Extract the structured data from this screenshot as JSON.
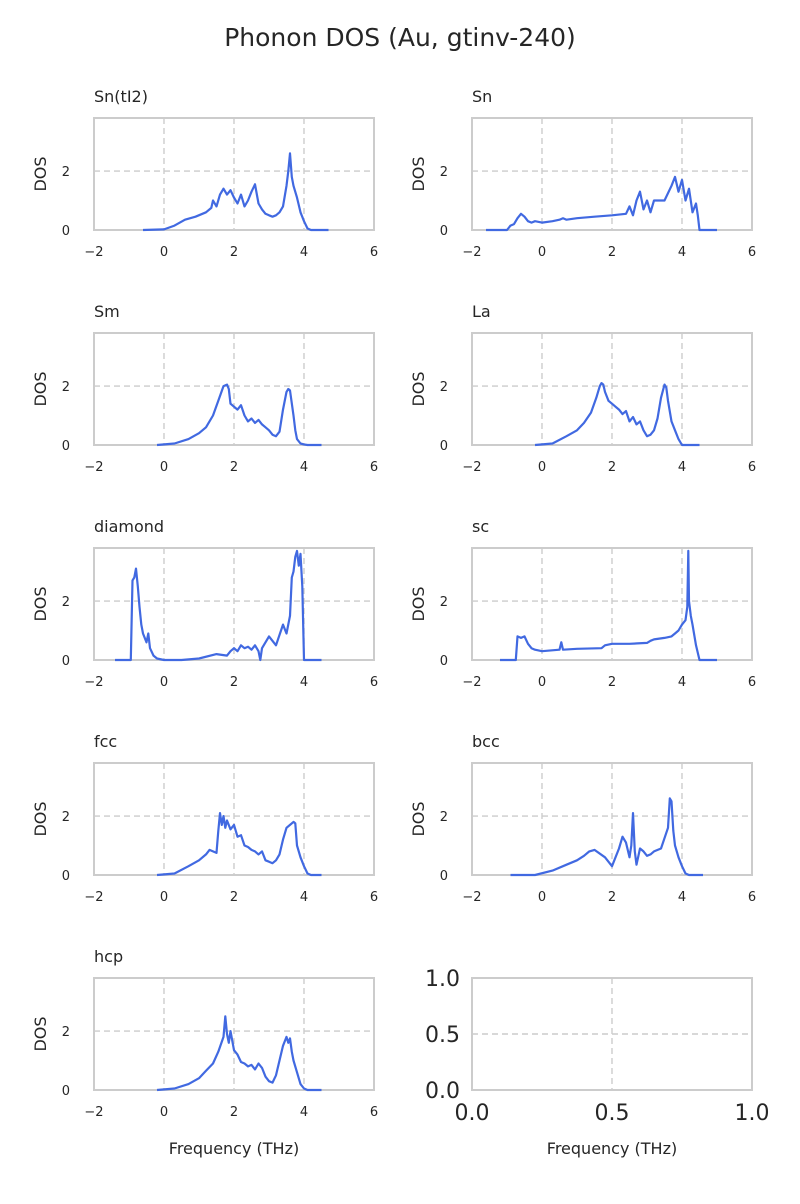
{
  "figure_title": "Phonon DOS (Au, gtinv-240)",
  "xlabel": "Frequency (THz)",
  "ylabel": "DOS",
  "chart_data": [
    {
      "type": "line",
      "title": "Sn(tI2)",
      "xlim": [
        -2,
        6
      ],
      "ylim": [
        0,
        3.8
      ],
      "xticks": [
        -2,
        0,
        2,
        4,
        6
      ],
      "yticks": [
        0,
        2
      ],
      "x": [
        -0.6,
        0,
        0.3,
        0.6,
        0.9,
        1.2,
        1.35,
        1.4,
        1.5,
        1.6,
        1.7,
        1.8,
        1.9,
        2.0,
        2.1,
        2.2,
        2.3,
        2.4,
        2.5,
        2.6,
        2.7,
        2.8,
        2.9,
        3.0,
        3.1,
        3.2,
        3.3,
        3.4,
        3.5,
        3.55,
        3.6,
        3.65,
        3.7,
        3.8,
        3.9,
        4.0,
        4.1,
        4.2,
        4.7
      ],
      "y": [
        0,
        0.02,
        0.15,
        0.35,
        0.45,
        0.6,
        0.75,
        1.0,
        0.8,
        1.2,
        1.4,
        1.2,
        1.35,
        1.1,
        0.9,
        1.2,
        0.8,
        1.0,
        1.3,
        1.55,
        0.9,
        0.7,
        0.55,
        0.5,
        0.45,
        0.5,
        0.6,
        0.8,
        1.5,
        2.0,
        2.6,
        1.8,
        1.5,
        1.1,
        0.6,
        0.3,
        0.05,
        0,
        0
      ]
    },
    {
      "type": "line",
      "title": "Sn",
      "xlim": [
        -2,
        6
      ],
      "ylim": [
        0,
        3.8
      ],
      "xticks": [
        -2,
        0,
        2,
        4,
        6
      ],
      "yticks": [
        0,
        2
      ],
      "x": [
        -1.6,
        -1.0,
        -0.9,
        -0.8,
        -0.7,
        -0.6,
        -0.5,
        -0.4,
        -0.3,
        -0.2,
        0,
        0.3,
        0.5,
        0.6,
        0.7,
        1.0,
        1.5,
        2.0,
        2.4,
        2.5,
        2.6,
        2.7,
        2.8,
        2.9,
        3.0,
        3.1,
        3.2,
        3.3,
        3.5,
        3.7,
        3.8,
        3.9,
        4.0,
        4.1,
        4.2,
        4.3,
        4.4,
        4.45,
        4.5,
        5.0
      ],
      "y": [
        0,
        0,
        0.15,
        0.2,
        0.4,
        0.55,
        0.45,
        0.3,
        0.25,
        0.3,
        0.25,
        0.3,
        0.35,
        0.4,
        0.35,
        0.4,
        0.45,
        0.5,
        0.55,
        0.8,
        0.5,
        1.0,
        1.3,
        0.7,
        1.0,
        0.6,
        1.0,
        1.0,
        1.0,
        1.5,
        1.8,
        1.3,
        1.7,
        1.0,
        1.4,
        0.6,
        0.9,
        0.5,
        0,
        0
      ]
    },
    {
      "type": "line",
      "title": "Sm",
      "xlim": [
        -2,
        6
      ],
      "ylim": [
        0,
        3.8
      ],
      "xticks": [
        -2,
        0,
        2,
        4,
        6
      ],
      "yticks": [
        0,
        2
      ],
      "x": [
        -0.2,
        0.3,
        0.7,
        1.0,
        1.2,
        1.4,
        1.55,
        1.7,
        1.8,
        1.85,
        1.9,
        2.0,
        2.1,
        2.2,
        2.3,
        2.4,
        2.5,
        2.6,
        2.7,
        2.8,
        2.9,
        3.0,
        3.1,
        3.2,
        3.3,
        3.4,
        3.5,
        3.55,
        3.6,
        3.7,
        3.75,
        3.8,
        3.9,
        4.0,
        4.1,
        4.5
      ],
      "y": [
        0,
        0.05,
        0.2,
        0.4,
        0.6,
        1.0,
        1.5,
        2.0,
        2.05,
        1.9,
        1.4,
        1.3,
        1.2,
        1.35,
        1.0,
        0.8,
        0.9,
        0.75,
        0.85,
        0.7,
        0.6,
        0.5,
        0.35,
        0.3,
        0.45,
        1.2,
        1.8,
        1.9,
        1.85,
        1.0,
        0.5,
        0.2,
        0.05,
        0.02,
        0,
        0
      ]
    },
    {
      "type": "line",
      "title": "La",
      "xlim": [
        -2,
        6
      ],
      "ylim": [
        0,
        3.8
      ],
      "xticks": [
        -2,
        0,
        2,
        4,
        6
      ],
      "yticks": [
        0,
        2
      ],
      "x": [
        -0.2,
        0.3,
        0.7,
        1.0,
        1.2,
        1.4,
        1.55,
        1.65,
        1.7,
        1.75,
        1.8,
        1.9,
        2.0,
        2.1,
        2.2,
        2.3,
        2.4,
        2.5,
        2.6,
        2.7,
        2.8,
        2.9,
        3.0,
        3.1,
        3.2,
        3.3,
        3.4,
        3.5,
        3.55,
        3.6,
        3.7,
        3.8,
        3.9,
        4.0,
        4.1,
        4.5
      ],
      "y": [
        0,
        0.05,
        0.3,
        0.5,
        0.75,
        1.1,
        1.6,
        2.0,
        2.1,
        2.05,
        1.8,
        1.5,
        1.4,
        1.3,
        1.2,
        1.05,
        1.15,
        0.8,
        0.95,
        0.7,
        0.8,
        0.5,
        0.3,
        0.35,
        0.5,
        0.9,
        1.6,
        2.05,
        1.95,
        1.5,
        0.8,
        0.5,
        0.2,
        0,
        0,
        0
      ]
    },
    {
      "type": "line",
      "title": "diamond",
      "xlim": [
        -2,
        6
      ],
      "ylim": [
        0,
        3.8
      ],
      "xticks": [
        -2,
        0,
        2,
        4,
        6
      ],
      "yticks": [
        0,
        2
      ],
      "x": [
        -1.4,
        -0.95,
        -0.9,
        -0.85,
        -0.8,
        -0.75,
        -0.7,
        -0.65,
        -0.6,
        -0.5,
        -0.45,
        -0.4,
        -0.3,
        -0.2,
        0,
        0.5,
        1.0,
        1.5,
        1.8,
        1.9,
        2.0,
        2.1,
        2.2,
        2.3,
        2.4,
        2.5,
        2.6,
        2.7,
        2.75,
        2.8,
        2.9,
        3.0,
        3.2,
        3.4,
        3.5,
        3.6,
        3.65,
        3.7,
        3.75,
        3.8,
        3.85,
        3.9,
        3.95,
        4.0,
        4.5
      ],
      "y": [
        0,
        0,
        2.7,
        2.8,
        3.1,
        2.5,
        1.8,
        1.2,
        0.9,
        0.6,
        0.9,
        0.4,
        0.15,
        0.05,
        0,
        0,
        0.05,
        0.2,
        0.15,
        0.3,
        0.4,
        0.3,
        0.5,
        0.4,
        0.45,
        0.35,
        0.5,
        0.3,
        0,
        0.4,
        0.6,
        0.8,
        0.5,
        1.2,
        0.9,
        1.5,
        2.8,
        3.0,
        3.5,
        3.7,
        3.2,
        3.6,
        2.5,
        0,
        0
      ]
    },
    {
      "type": "line",
      "title": "sc",
      "xlim": [
        -2,
        6
      ],
      "ylim": [
        0,
        3.8
      ],
      "xticks": [
        -2,
        0,
        2,
        4,
        6
      ],
      "yticks": [
        0,
        2
      ],
      "x": [
        -1.2,
        -0.75,
        -0.7,
        -0.6,
        -0.5,
        -0.4,
        -0.3,
        -0.2,
        0,
        0.5,
        0.55,
        0.6,
        1.0,
        1.7,
        1.8,
        2.0,
        2.5,
        3.0,
        3.1,
        3.2,
        3.5,
        3.7,
        3.8,
        3.9,
        4.0,
        4.1,
        4.15,
        4.18,
        4.2,
        4.25,
        4.3,
        4.4,
        4.5,
        5.0
      ],
      "y": [
        0,
        0,
        0.8,
        0.75,
        0.8,
        0.55,
        0.4,
        0.35,
        0.3,
        0.35,
        0.6,
        0.35,
        0.38,
        0.4,
        0.5,
        0.55,
        0.55,
        0.58,
        0.65,
        0.7,
        0.75,
        0.8,
        0.9,
        1.0,
        1.2,
        1.35,
        1.8,
        3.7,
        2.0,
        1.5,
        1.2,
        0.5,
        0,
        0
      ]
    },
    {
      "type": "line",
      "title": "fcc",
      "xlim": [
        -2,
        6
      ],
      "ylim": [
        0,
        3.8
      ],
      "xticks": [
        -2,
        0,
        2,
        4,
        6
      ],
      "yticks": [
        0,
        2
      ],
      "x": [
        -0.2,
        0.3,
        0.7,
        1.0,
        1.2,
        1.3,
        1.4,
        1.5,
        1.55,
        1.6,
        1.65,
        1.7,
        1.75,
        1.8,
        1.9,
        2.0,
        2.1,
        2.2,
        2.3,
        2.4,
        2.5,
        2.6,
        2.7,
        2.8,
        2.9,
        3.0,
        3.1,
        3.2,
        3.3,
        3.4,
        3.5,
        3.6,
        3.7,
        3.75,
        3.8,
        3.9,
        4.0,
        4.1,
        4.2,
        4.5
      ],
      "y": [
        0,
        0.05,
        0.3,
        0.5,
        0.7,
        0.85,
        0.8,
        0.75,
        1.5,
        2.1,
        1.7,
        2.0,
        1.6,
        1.85,
        1.55,
        1.7,
        1.3,
        1.35,
        1.0,
        0.95,
        0.85,
        0.8,
        0.7,
        0.8,
        0.5,
        0.45,
        0.4,
        0.5,
        0.7,
        1.2,
        1.6,
        1.7,
        1.8,
        1.75,
        1.0,
        0.6,
        0.3,
        0.05,
        0,
        0
      ]
    },
    {
      "type": "line",
      "title": "bcc",
      "xlim": [
        -2,
        6
      ],
      "ylim": [
        0,
        3.8
      ],
      "xticks": [
        -2,
        0,
        2,
        4,
        6
      ],
      "yticks": [
        0,
        2
      ],
      "x": [
        -0.9,
        -0.2,
        0.3,
        0.7,
        1.0,
        1.2,
        1.35,
        1.5,
        1.8,
        2.0,
        2.2,
        2.3,
        2.4,
        2.5,
        2.55,
        2.6,
        2.65,
        2.7,
        2.8,
        2.9,
        3.0,
        3.1,
        3.2,
        3.4,
        3.6,
        3.65,
        3.7,
        3.75,
        3.8,
        3.9,
        4.0,
        4.1,
        4.2,
        4.6
      ],
      "y": [
        0,
        0,
        0.15,
        0.35,
        0.5,
        0.65,
        0.8,
        0.85,
        0.6,
        0.3,
        0.9,
        1.3,
        1.1,
        0.6,
        1.0,
        2.1,
        0.8,
        0.35,
        0.9,
        0.8,
        0.65,
        0.7,
        0.8,
        0.9,
        1.6,
        2.6,
        2.5,
        1.5,
        1.0,
        0.6,
        0.3,
        0.05,
        0,
        0
      ]
    },
    {
      "type": "line",
      "title": "hcp",
      "xlim": [
        -2,
        6
      ],
      "ylim": [
        0,
        3.8
      ],
      "xticks": [
        -2,
        0,
        2,
        4,
        6
      ],
      "yticks": [
        0,
        2
      ],
      "x": [
        -0.2,
        0.3,
        0.7,
        1.0,
        1.2,
        1.4,
        1.55,
        1.7,
        1.75,
        1.8,
        1.85,
        1.9,
        2.0,
        2.1,
        2.2,
        2.3,
        2.4,
        2.5,
        2.6,
        2.7,
        2.8,
        2.9,
        3.0,
        3.1,
        3.2,
        3.3,
        3.4,
        3.5,
        3.55,
        3.6,
        3.65,
        3.7,
        3.8,
        3.9,
        4.0,
        4.1,
        4.2,
        4.5
      ],
      "y": [
        0,
        0.05,
        0.2,
        0.4,
        0.65,
        0.9,
        1.3,
        1.8,
        2.5,
        1.9,
        1.6,
        2.0,
        1.35,
        1.2,
        0.95,
        0.9,
        0.8,
        0.85,
        0.7,
        0.9,
        0.75,
        0.45,
        0.3,
        0.25,
        0.5,
        1.0,
        1.5,
        1.8,
        1.6,
        1.75,
        1.3,
        1.0,
        0.6,
        0.2,
        0.05,
        0,
        0,
        0
      ]
    },
    {
      "type": "line",
      "title": "",
      "xlim": [
        0,
        1
      ],
      "ylim": [
        0,
        1
      ],
      "xticks": [
        "0.0",
        "0.5",
        "1.0"
      ],
      "yticks": [
        "0.0",
        "0.5",
        "1.0"
      ],
      "x": [],
      "y": []
    }
  ]
}
